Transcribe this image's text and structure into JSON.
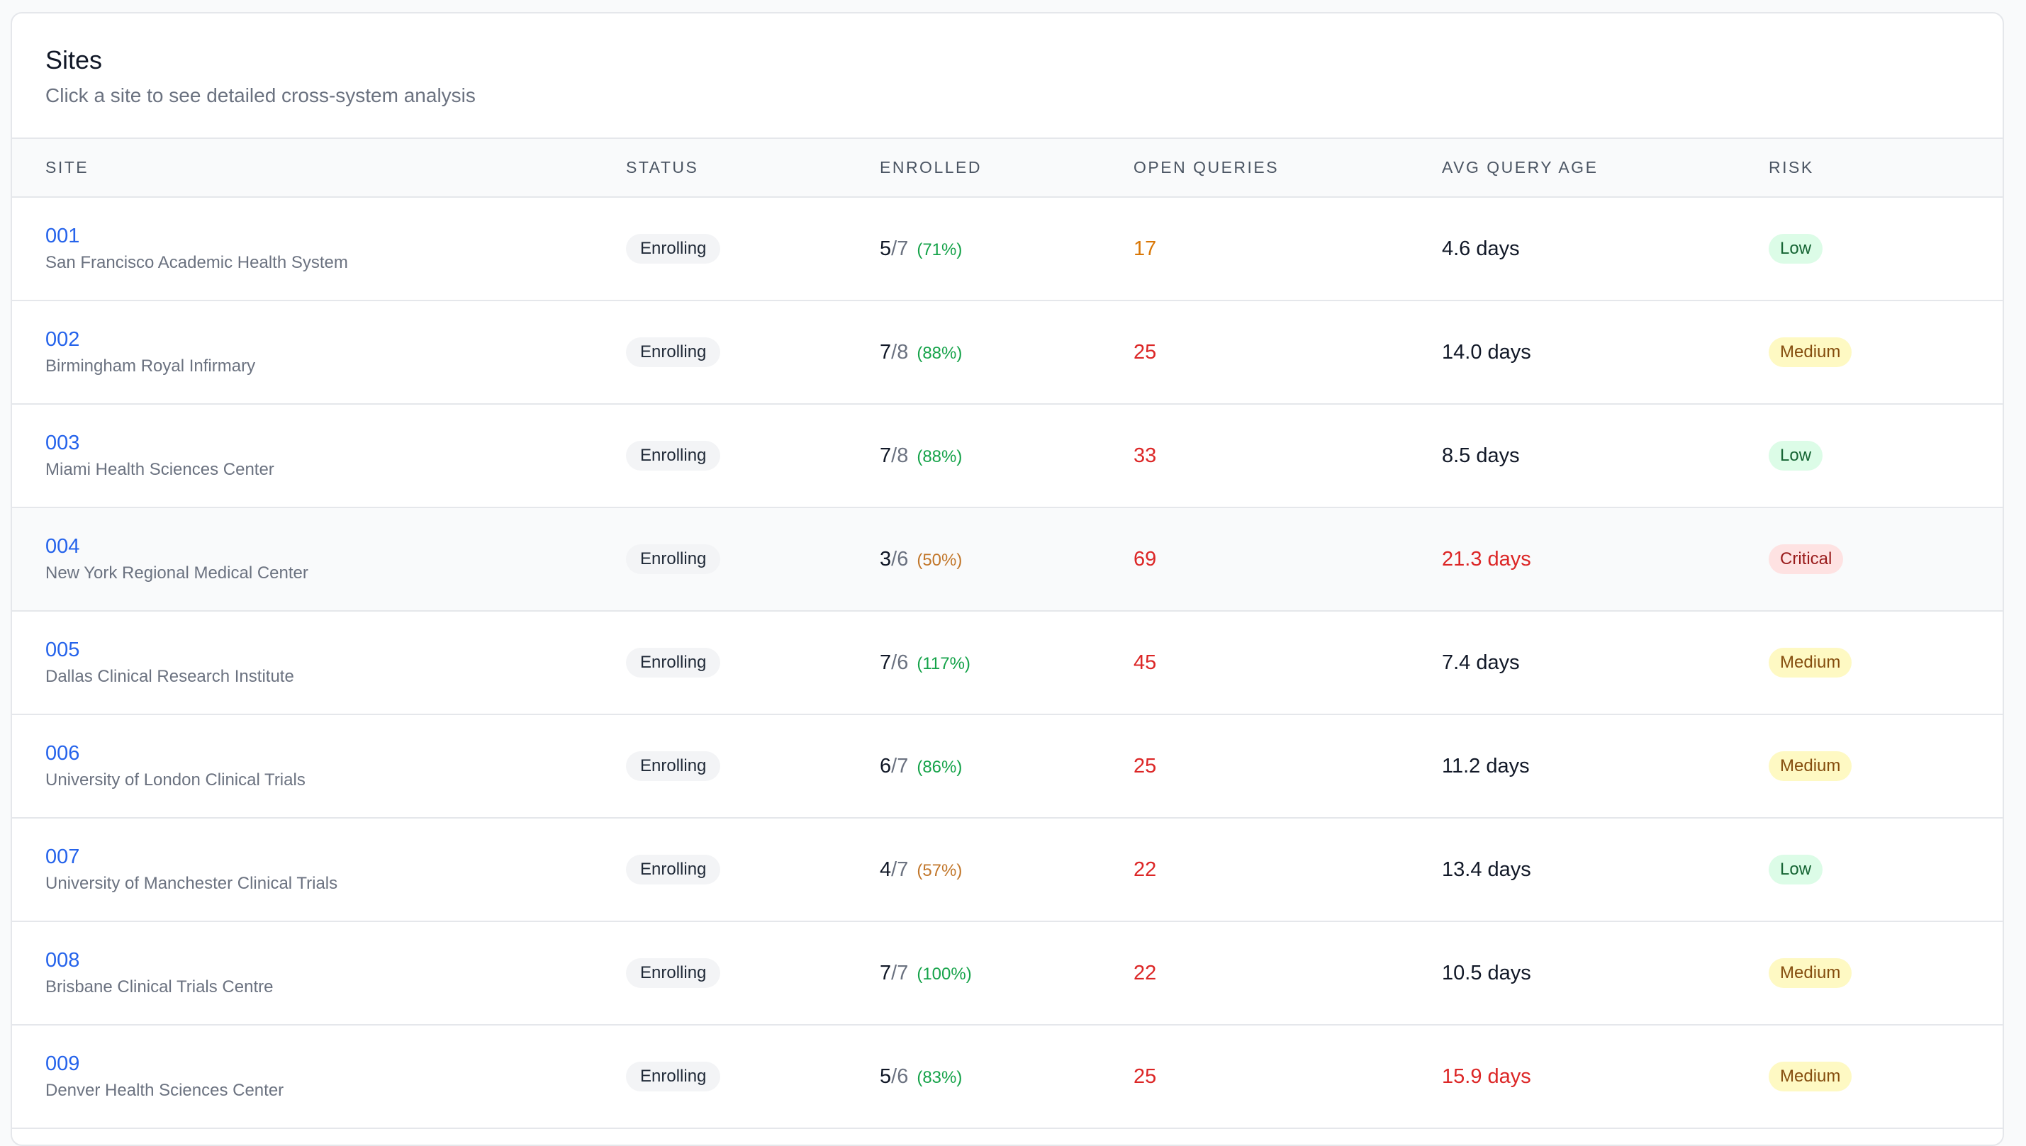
{
  "card": {
    "title": "Sites",
    "subtitle": "Click a site to see detailed cross-system analysis"
  },
  "columns": {
    "site": "SITE",
    "status": "STATUS",
    "enrolled": "ENROLLED",
    "open_queries": "OPEN QUERIES",
    "avg_query_age": "AVG QUERY AGE",
    "risk": "RISK"
  },
  "colors": {
    "link": "#2563eb",
    "green": "#16a34a",
    "amber": "#d97706",
    "red": "#dc2626"
  },
  "rows": [
    {
      "id": "001",
      "name": "San Francisco Academic Health System",
      "status": "Enrolling",
      "enrolled": "5",
      "target": "/7",
      "pct": "(71%)",
      "pct_tone": "green",
      "open_queries": "17",
      "q_tone": "amber",
      "avg_age": "4.6 days",
      "age_tone": "normal",
      "risk": "Low",
      "risk_level": "low"
    },
    {
      "id": "002",
      "name": "Birmingham Royal Infirmary",
      "status": "Enrolling",
      "enrolled": "7",
      "target": "/8",
      "pct": "(88%)",
      "pct_tone": "green",
      "open_queries": "25",
      "q_tone": "red",
      "avg_age": "14.0 days",
      "age_tone": "normal",
      "risk": "Medium",
      "risk_level": "medium"
    },
    {
      "id": "003",
      "name": "Miami Health Sciences Center",
      "status": "Enrolling",
      "enrolled": "7",
      "target": "/8",
      "pct": "(88%)",
      "pct_tone": "green",
      "open_queries": "33",
      "q_tone": "red",
      "avg_age": "8.5 days",
      "age_tone": "normal",
      "risk": "Low",
      "risk_level": "low"
    },
    {
      "id": "004",
      "name": "New York Regional Medical Center",
      "status": "Enrolling",
      "enrolled": "3",
      "target": "/6",
      "pct": "(50%)",
      "pct_tone": "amber",
      "open_queries": "69",
      "q_tone": "red",
      "avg_age": "21.3 days",
      "age_tone": "red",
      "risk": "Critical",
      "risk_level": "critical",
      "highlight": true
    },
    {
      "id": "005",
      "name": "Dallas Clinical Research Institute",
      "status": "Enrolling",
      "enrolled": "7",
      "target": "/6",
      "pct": "(117%)",
      "pct_tone": "green",
      "open_queries": "45",
      "q_tone": "red",
      "avg_age": "7.4 days",
      "age_tone": "normal",
      "risk": "Medium",
      "risk_level": "medium"
    },
    {
      "id": "006",
      "name": "University of London Clinical Trials",
      "status": "Enrolling",
      "enrolled": "6",
      "target": "/7",
      "pct": "(86%)",
      "pct_tone": "green",
      "open_queries": "25",
      "q_tone": "red",
      "avg_age": "11.2 days",
      "age_tone": "normal",
      "risk": "Medium",
      "risk_level": "medium"
    },
    {
      "id": "007",
      "name": "University of Manchester Clinical Trials",
      "status": "Enrolling",
      "enrolled": "4",
      "target": "/7",
      "pct": "(57%)",
      "pct_tone": "amber",
      "open_queries": "22",
      "q_tone": "red",
      "avg_age": "13.4 days",
      "age_tone": "normal",
      "risk": "Low",
      "risk_level": "low"
    },
    {
      "id": "008",
      "name": "Brisbane Clinical Trials Centre",
      "status": "Enrolling",
      "enrolled": "7",
      "target": "/7",
      "pct": "(100%)",
      "pct_tone": "green",
      "open_queries": "22",
      "q_tone": "red",
      "avg_age": "10.5 days",
      "age_tone": "normal",
      "risk": "Medium",
      "risk_level": "medium"
    },
    {
      "id": "009",
      "name": "Denver Health Sciences Center",
      "status": "Enrolling",
      "enrolled": "5",
      "target": "/6",
      "pct": "(83%)",
      "pct_tone": "green",
      "open_queries": "25",
      "q_tone": "red",
      "avg_age": "15.9 days",
      "age_tone": "red",
      "risk": "Medium",
      "risk_level": "medium"
    }
  ]
}
